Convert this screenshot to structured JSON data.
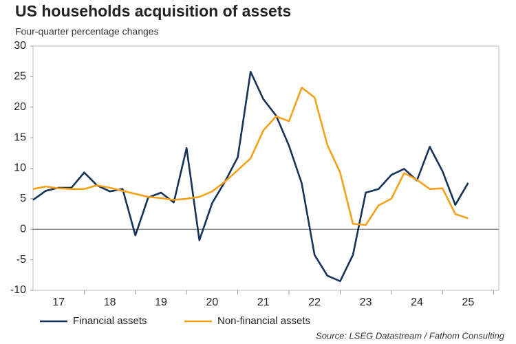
{
  "chart_data": {
    "type": "line",
    "title": "US households acquisition of assets",
    "subtitle": "Four-quarter percentage changes",
    "source": "Source: LSEG Datastream / Fathom Consulting",
    "x": [
      17,
      17.25,
      17.5,
      17.75,
      18,
      18.25,
      18.5,
      18.75,
      19,
      19.25,
      19.5,
      19.75,
      20,
      20.25,
      20.5,
      20.75,
      21,
      21.25,
      21.5,
      21.75,
      22,
      22.25,
      22.5,
      22.75,
      23,
      23.25,
      23.5,
      23.75,
      24,
      24.25,
      24.5,
      24.75,
      25,
      25.25,
      25.5
    ],
    "series": [
      {
        "name": "Financial assets",
        "color": "#15335a",
        "values": [
          4.8,
          6.3,
          6.8,
          6.8,
          9.3,
          7.2,
          6.2,
          6.6,
          -1.0,
          5.2,
          6.0,
          4.4,
          13.3,
          -1.8,
          4.3,
          7.8,
          11.8,
          25.8,
          21.3,
          18.6,
          13.7,
          7.5,
          -4.2,
          -7.6,
          -8.5,
          -4.2,
          6.0,
          6.6,
          8.9,
          9.9,
          8.0,
          13.5,
          9.5,
          4.0,
          7.6
        ]
      },
      {
        "name": "Non-financial assets",
        "color": "#f5a01a",
        "values": [
          6.6,
          7.0,
          6.7,
          6.6,
          6.6,
          7.2,
          6.8,
          6.3,
          5.8,
          5.3,
          5.1,
          4.8,
          5.0,
          5.3,
          6.2,
          7.8,
          9.7,
          11.6,
          16.2,
          18.5,
          17.7,
          23.2,
          21.6,
          13.8,
          9.3,
          0.9,
          0.7,
          3.9,
          5.0,
          9.2,
          8.1,
          6.6,
          6.7,
          2.5,
          1.8
        ]
      }
    ],
    "xlim": [
      17,
      26.1
    ],
    "xticks": [
      {
        "value": 17.5,
        "label": "17"
      },
      {
        "value": 18.5,
        "label": "18"
      },
      {
        "value": 19.5,
        "label": "19"
      },
      {
        "value": 20.5,
        "label": "20"
      },
      {
        "value": 21.5,
        "label": "21"
      },
      {
        "value": 22.5,
        "label": "22"
      },
      {
        "value": 23.5,
        "label": "23"
      },
      {
        "value": 24.5,
        "label": "24"
      },
      {
        "value": 25.5,
        "label": "25"
      }
    ],
    "ylim": [
      -10,
      30
    ],
    "yticks": [
      -10,
      -5,
      0,
      5,
      10,
      15,
      20,
      25,
      30
    ],
    "grid": false,
    "legend": "bottom"
  }
}
